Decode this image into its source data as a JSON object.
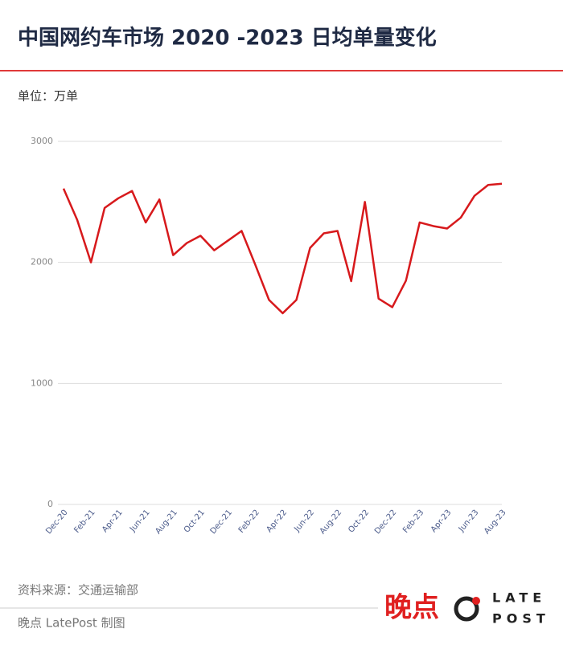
{
  "chart_data": {
    "type": "line",
    "title": "中国网约车市场 2020 -2023 日均单量变化",
    "unit": "单位：万单",
    "source": "资料来源：交通运输部",
    "credit": "晚点 LatePost 制图",
    "logo": {
      "cn": "晚点",
      "en_top": "LATE",
      "en_bottom": "POST"
    },
    "categories": [
      "Dec-20",
      null,
      "Feb-21",
      null,
      "Apr-21",
      null,
      "Jun-21",
      null,
      "Aug-21",
      null,
      "Oct-21",
      null,
      "Dec-21",
      null,
      "Feb-22",
      null,
      "Apr-22",
      null,
      "Jun-22",
      null,
      "Aug-22",
      null,
      "Oct-22",
      null,
      "Dec-22",
      null,
      "Feb-23",
      null,
      "Apr-23",
      null,
      "Jun-23",
      null,
      "Aug-23"
    ],
    "series": [
      {
        "color": "#d7191c",
        "values": [
          2610,
          2350,
          2000,
          2450,
          2530,
          2590,
          2330,
          2520,
          2060,
          2160,
          2220,
          2100,
          2180,
          2260,
          1980,
          1690,
          1580,
          1690,
          2120,
          2240,
          2260,
          1845,
          2500,
          1700,
          1630,
          1850,
          2330,
          2300,
          2280,
          2370,
          2550,
          2640,
          2650
        ]
      }
    ],
    "ylim": [
      0,
      3000
    ],
    "yticks": [
      0,
      1000,
      2000,
      3000
    ],
    "grid": true
  }
}
